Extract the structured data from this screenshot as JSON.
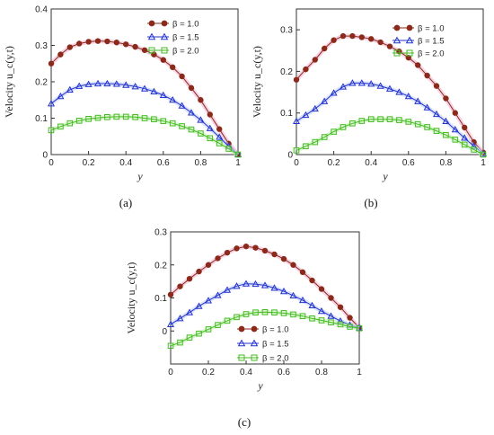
{
  "chart_data": [
    {
      "id": "a",
      "type": "line",
      "caption": "(a)",
      "xlabel": "y",
      "ylabel": "Velocity u_c(y,t)",
      "xlim": [
        0,
        1
      ],
      "ylim": [
        0,
        0.4
      ],
      "xticks": [
        "0",
        "0.2",
        "0.4",
        "0.6",
        "0.8",
        "1"
      ],
      "yticks": [
        "0",
        "0.1",
        "0.2",
        "0.3",
        "0.4"
      ],
      "legend_position": "top-right",
      "x": [
        0,
        0.05,
        0.1,
        0.15,
        0.2,
        0.25,
        0.3,
        0.35,
        0.4,
        0.45,
        0.5,
        0.55,
        0.6,
        0.65,
        0.7,
        0.75,
        0.8,
        0.85,
        0.9,
        0.95,
        1
      ],
      "series": [
        {
          "name": "β = 1.0",
          "color": "#8b2a1a",
          "marker": "circle",
          "values": [
            0.25,
            0.275,
            0.295,
            0.305,
            0.31,
            0.312,
            0.311,
            0.308,
            0.303,
            0.296,
            0.287,
            0.275,
            0.26,
            0.24,
            0.215,
            0.183,
            0.15,
            0.11,
            0.07,
            0.03,
            0.0
          ]
        },
        {
          "name": "β = 1.5",
          "color": "#2233cc",
          "marker": "triangle",
          "values": [
            0.14,
            0.16,
            0.178,
            0.188,
            0.193,
            0.195,
            0.195,
            0.194,
            0.191,
            0.187,
            0.181,
            0.173,
            0.163,
            0.15,
            0.134,
            0.115,
            0.095,
            0.072,
            0.048,
            0.023,
            0.0
          ]
        },
        {
          "name": "β = 2.0",
          "color": "#44bb22",
          "marker": "square",
          "values": [
            0.067,
            0.077,
            0.086,
            0.093,
            0.098,
            0.101,
            0.103,
            0.104,
            0.104,
            0.103,
            0.1,
            0.097,
            0.092,
            0.086,
            0.078,
            0.069,
            0.058,
            0.045,
            0.031,
            0.016,
            0.0
          ]
        }
      ]
    },
    {
      "id": "b",
      "type": "line",
      "caption": "(b)",
      "xlabel": "y",
      "ylabel": "Velocity u_c(y,t)",
      "xlim": [
        0,
        1
      ],
      "ylim": [
        0,
        0.35
      ],
      "xticks": [
        "0",
        "0.2",
        "0.4",
        "0.6",
        "0.8",
        "1"
      ],
      "yticks": [
        "0",
        "0.1",
        "0.2",
        "0.3"
      ],
      "legend_position": "top-right",
      "x": [
        0,
        0.05,
        0.1,
        0.15,
        0.2,
        0.25,
        0.3,
        0.35,
        0.4,
        0.45,
        0.5,
        0.55,
        0.6,
        0.65,
        0.7,
        0.75,
        0.8,
        0.85,
        0.9,
        0.95,
        1
      ],
      "series": [
        {
          "name": "β = 1.0",
          "color": "#8b2a1a",
          "marker": "circle",
          "values": [
            0.18,
            0.205,
            0.228,
            0.255,
            0.275,
            0.285,
            0.285,
            0.282,
            0.278,
            0.27,
            0.26,
            0.248,
            0.233,
            0.215,
            0.19,
            0.165,
            0.135,
            0.1,
            0.065,
            0.03,
            0.005
          ]
        },
        {
          "name": "β = 1.5",
          "color": "#2233cc",
          "marker": "triangle",
          "values": [
            0.08,
            0.095,
            0.11,
            0.128,
            0.148,
            0.163,
            0.172,
            0.172,
            0.17,
            0.165,
            0.158,
            0.15,
            0.14,
            0.128,
            0.113,
            0.097,
            0.08,
            0.06,
            0.04,
            0.02,
            0.002
          ]
        },
        {
          "name": "β = 2.0",
          "color": "#44bb22",
          "marker": "square",
          "values": [
            0.01,
            0.02,
            0.03,
            0.042,
            0.055,
            0.066,
            0.075,
            0.081,
            0.085,
            0.085,
            0.085,
            0.083,
            0.079,
            0.073,
            0.066,
            0.057,
            0.047,
            0.036,
            0.024,
            0.012,
            0.0
          ]
        }
      ]
    },
    {
      "id": "c",
      "type": "line",
      "caption": "(c)",
      "xlabel": "y",
      "ylabel": "Velocity u_c(y,t)",
      "xlim": [
        0,
        1
      ],
      "ylim": [
        -0.1,
        0.3
      ],
      "xticks": [
        "0",
        "0.2",
        "0.4",
        "0.6",
        "0.8",
        "1"
      ],
      "yticks": [
        "0",
        "0.1",
        "0.2",
        "0.3"
      ],
      "legend_position": "bottom-left",
      "x": [
        0,
        0.05,
        0.1,
        0.15,
        0.2,
        0.25,
        0.3,
        0.35,
        0.4,
        0.45,
        0.5,
        0.55,
        0.6,
        0.65,
        0.7,
        0.75,
        0.8,
        0.85,
        0.9,
        0.95,
        1
      ],
      "series": [
        {
          "name": "β = 1.0",
          "color": "#8b2a1a",
          "marker": "circle",
          "values": [
            0.11,
            0.135,
            0.158,
            0.18,
            0.2,
            0.22,
            0.237,
            0.25,
            0.256,
            0.252,
            0.243,
            0.232,
            0.218,
            0.2,
            0.178,
            0.153,
            0.127,
            0.1,
            0.072,
            0.04,
            0.01
          ]
        },
        {
          "name": "β = 1.5",
          "color": "#2233cc",
          "marker": "triangle",
          "values": [
            0.02,
            0.038,
            0.056,
            0.075,
            0.092,
            0.108,
            0.124,
            0.136,
            0.143,
            0.142,
            0.138,
            0.13,
            0.12,
            0.107,
            0.093,
            0.077,
            0.06,
            0.045,
            0.03,
            0.018,
            0.01
          ]
        },
        {
          "name": "β = 2.0",
          "color": "#44bb22",
          "marker": "square",
          "values": [
            -0.045,
            -0.035,
            -0.02,
            -0.008,
            0.005,
            0.018,
            0.031,
            0.042,
            0.051,
            0.056,
            0.057,
            0.056,
            0.054,
            0.05,
            0.045,
            0.038,
            0.032,
            0.026,
            0.02,
            0.013,
            0.008
          ]
        }
      ]
    }
  ]
}
